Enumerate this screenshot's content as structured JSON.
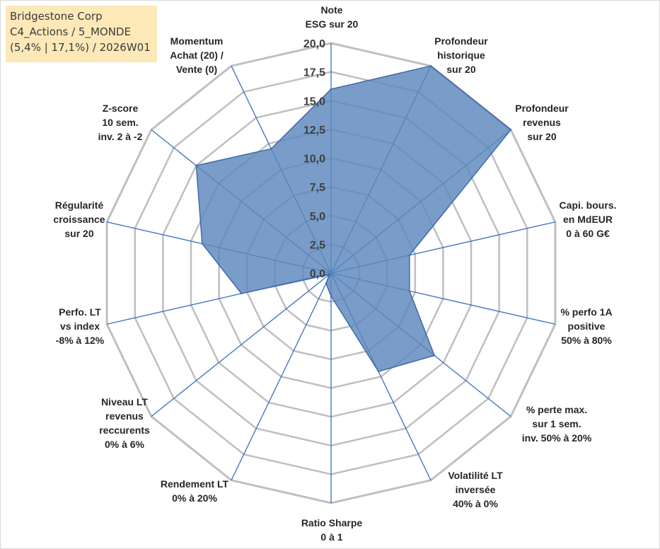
{
  "info_box": {
    "line1": "Bridgestone Corp",
    "line2": "C4_Actions / 5_MONDE",
    "line3": "(5,4% | 17,1%) / 2026W01"
  },
  "colors": {
    "fill": "#5b87bc",
    "outline": "#3f6aa8",
    "spokes": "#3a6fc0",
    "grid": "#bfbfbf",
    "info_bg": "#fde9b8"
  },
  "chart_data": {
    "type": "radar",
    "rmax": 20,
    "tick_labels": [
      "0,0",
      "2,5",
      "5,0",
      "7,5",
      "10,0",
      "12,5",
      "15,0",
      "17,5",
      "20,0"
    ],
    "grid_levels": [
      2.5,
      5,
      7.5,
      10,
      12.5,
      15,
      17.5,
      20
    ],
    "axes": [
      {
        "label": [
          "Note",
          "ESG sur 20"
        ],
        "value": 16
      },
      {
        "label": [
          "Profondeur",
          "historique",
          "sur 20"
        ],
        "value": 20
      },
      {
        "label": [
          "Profondeur",
          "revenus",
          "sur 20"
        ],
        "value": 20
      },
      {
        "label": [
          "Capi. bours.",
          "en MdEUR",
          "0 à 60 G€"
        ],
        "value": 7
      },
      {
        "label": [
          "% perfo 1A",
          "positive",
          "50% à 80%"
        ],
        "value": 7
      },
      {
        "label": [
          "% perte max.",
          "sur 1 sem.",
          "inv. 50% à 20%"
        ],
        "value": 11.5
      },
      {
        "label": [
          "Volatilité LT",
          "inversée",
          "40% à 0%"
        ],
        "value": 9.5
      },
      {
        "label": [
          "Ratio Sharpe",
          "0 à 1"
        ],
        "value": 2
      },
      {
        "label": [
          "Rendement LT",
          "0% à 20%"
        ],
        "value": 1
      },
      {
        "label": [
          "Niveau LT",
          "revenus",
          "reccurents",
          "0% à 6%"
        ],
        "value": 0.2
      },
      {
        "label": [
          "Perfo. LT",
          "vs index",
          "-8% à 12%"
        ],
        "value": 8
      },
      {
        "label": [
          "Régularité",
          "croissance",
          "sur 20"
        ],
        "value": 11.5
      },
      {
        "label": [
          "Z-score",
          "10 sem.",
          "inv. 2 à -2"
        ],
        "value": 15
      },
      {
        "label": [
          "Momentum",
          "Achat (20) /",
          "Vente (0)"
        ],
        "value": 12
      }
    ]
  }
}
